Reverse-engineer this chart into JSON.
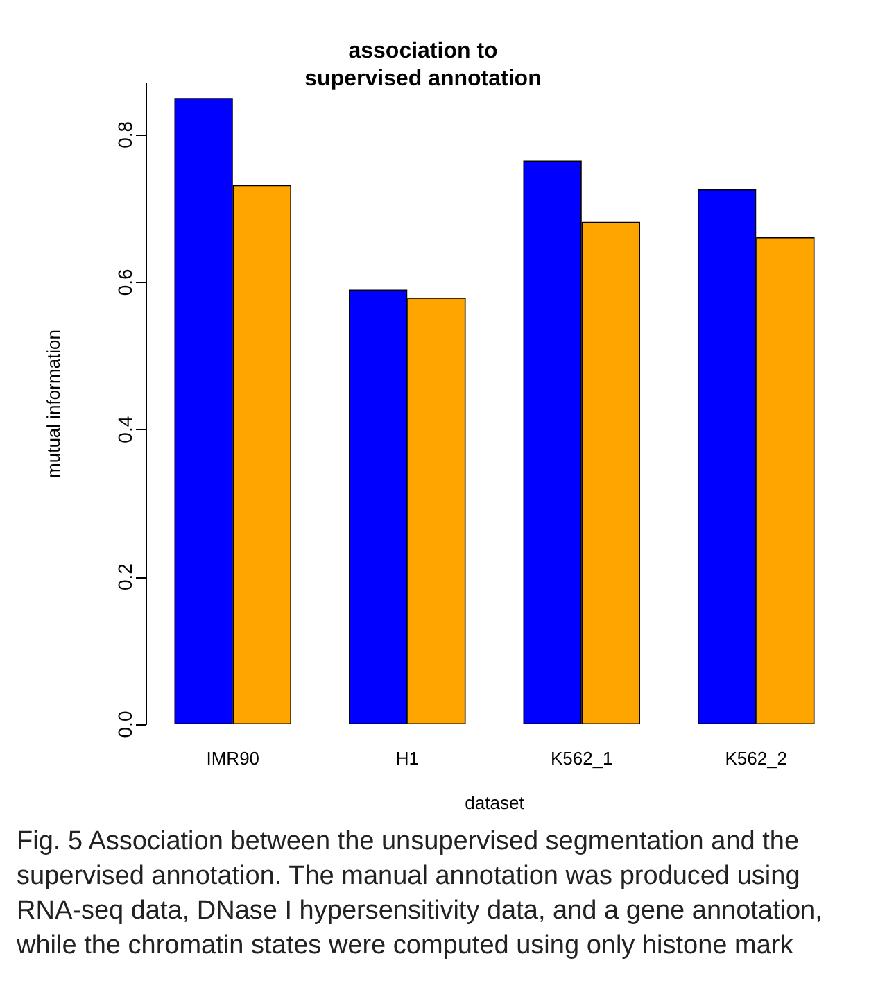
{
  "chart_data": {
    "type": "bar",
    "title": "association to\nsupervised annotation",
    "xlabel": "dataset",
    "ylabel": "mutual information",
    "categories": [
      "IMR90",
      "H1",
      "K562_1",
      "K562_2"
    ],
    "series": [
      {
        "color": "#0000ff",
        "values": [
          0.85,
          0.59,
          0.765,
          0.726
        ]
      },
      {
        "color": "#ffa500",
        "values": [
          0.732,
          0.579,
          0.682,
          0.661
        ]
      }
    ],
    "ylim": [
      0,
      0.87
    ],
    "yticks": [
      {
        "value": 0,
        "label": "0.0"
      },
      0.2,
      0.4,
      0.6,
      0.8
    ],
    "grid": false,
    "annotations": [
      "Fig. 5 Association between the unsupervised segmentation and the supervised annotation. The manual annotation was produced using RNA-seq data, DNase I hypersensitivity data, and a gene annotation, while the chromatin states were computed using only histone mark"
    ]
  }
}
